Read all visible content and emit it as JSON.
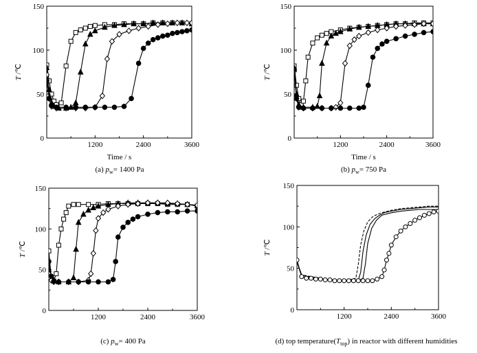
{
  "chart_data": [
    {
      "type": "line",
      "panel": "a",
      "caption": {
        "prefix": "(a) ",
        "sym": "p",
        "sub": "w",
        "rest": "= 1400 Pa"
      },
      "xlabel": "Time / s",
      "ylabel": {
        "sym": "T",
        "rest": " /℃"
      },
      "xlim": [
        0,
        3600
      ],
      "ylim": [
        0,
        150
      ],
      "xticks": [
        1200,
        2400,
        3600
      ],
      "yticks": [
        0,
        50,
        100,
        150
      ],
      "series": [
        {
          "marker": "square-open",
          "x": [
            0,
            60,
            120,
            180,
            240,
            360,
            480,
            600,
            720,
            840,
            960,
            1080,
            1200,
            1440,
            1680,
            1920,
            2160,
            2400,
            2640,
            2880,
            3120,
            3360,
            3600
          ],
          "y": [
            83,
            65,
            50,
            42,
            38,
            40,
            82,
            110,
            120,
            123,
            125,
            127,
            128,
            129,
            129,
            130,
            130,
            130,
            131,
            131,
            131,
            131,
            130
          ]
        },
        {
          "marker": "triangle-filled",
          "x": [
            0,
            60,
            120,
            180,
            300,
            480,
            600,
            720,
            840,
            960,
            1080,
            1200,
            1440,
            1680,
            1920,
            2160,
            2400,
            2640,
            2880,
            3120,
            3360,
            3600
          ],
          "y": [
            80,
            55,
            40,
            36,
            34,
            34,
            35,
            40,
            75,
            107,
            118,
            122,
            126,
            128,
            129,
            130,
            130,
            131,
            131,
            131,
            131,
            130
          ]
        },
        {
          "marker": "diamond-open",
          "x": [
            0,
            60,
            120,
            240,
            480,
            720,
            960,
            1200,
            1380,
            1500,
            1620,
            1800,
            2040,
            2280,
            2520,
            2760,
            3000,
            3240,
            3480,
            3600
          ],
          "y": [
            72,
            45,
            36,
            34,
            34,
            34,
            34,
            35,
            48,
            90,
            110,
            118,
            122,
            125,
            127,
            129,
            130,
            131,
            131,
            131
          ]
        },
        {
          "marker": "circle-filled",
          "x": [
            0,
            60,
            120,
            240,
            480,
            720,
            960,
            1200,
            1440,
            1680,
            1920,
            2100,
            2280,
            2400,
            2520,
            2640,
            2760,
            2880,
            3000,
            3120,
            3240,
            3360,
            3480,
            3600
          ],
          "y": [
            65,
            45,
            37,
            35,
            35,
            35,
            35,
            35,
            35,
            35,
            36,
            45,
            85,
            102,
            108,
            112,
            114,
            116,
            117,
            119,
            120,
            121,
            122,
            123
          ]
        }
      ]
    },
    {
      "type": "line",
      "panel": "b",
      "caption": {
        "prefix": "(b) ",
        "sym": "p",
        "sub": "w",
        "rest": "= 750 Pa"
      },
      "xlabel": "Time / s",
      "ylabel": {
        "sym": "T",
        "rest": " /℃"
      },
      "xlim": [
        0,
        3600
      ],
      "ylim": [
        0,
        150
      ],
      "xticks": [
        1200,
        2400,
        3600
      ],
      "yticks": [
        0,
        50,
        100,
        150
      ],
      "series": [
        {
          "marker": "square-open",
          "x": [
            0,
            60,
            120,
            180,
            240,
            300,
            360,
            480,
            600,
            720,
            840,
            960,
            1200,
            1440,
            1680,
            1920,
            2160,
            2400,
            2640,
            2880,
            3120,
            3360,
            3600
          ],
          "y": [
            82,
            60,
            45,
            38,
            42,
            65,
            92,
            108,
            114,
            117,
            119,
            121,
            123,
            125,
            126,
            127,
            128,
            129,
            130,
            130,
            131,
            131,
            131
          ]
        },
        {
          "marker": "triangle-filled",
          "x": [
            0,
            60,
            120,
            240,
            480,
            600,
            660,
            720,
            840,
            960,
            1080,
            1200,
            1440,
            1680,
            1920,
            2160,
            2400,
            2640,
            2880,
            3120,
            3360,
            3600
          ],
          "y": [
            80,
            50,
            38,
            35,
            35,
            36,
            48,
            85,
            108,
            116,
            119,
            121,
            124,
            126,
            127,
            128,
            129,
            130,
            130,
            130,
            130,
            130
          ]
        },
        {
          "marker": "diamond-open",
          "x": [
            0,
            60,
            120,
            240,
            480,
            720,
            960,
            1080,
            1200,
            1320,
            1440,
            1560,
            1680,
            1920,
            2160,
            2400,
            2640,
            2880,
            3120,
            3360,
            3600
          ],
          "y": [
            76,
            45,
            35,
            34,
            34,
            34,
            34,
            35,
            40,
            85,
            105,
            112,
            116,
            120,
            123,
            125,
            127,
            128,
            129,
            130,
            130
          ]
        },
        {
          "marker": "circle-filled",
          "x": [
            0,
            60,
            120,
            240,
            480,
            720,
            960,
            1200,
            1440,
            1680,
            1800,
            1920,
            2040,
            2160,
            2280,
            2400,
            2640,
            2880,
            3120,
            3360,
            3600
          ],
          "y": [
            78,
            45,
            35,
            34,
            34,
            34,
            34,
            34,
            34,
            34,
            35,
            60,
            92,
            102,
            107,
            110,
            113,
            116,
            118,
            120,
            121
          ]
        }
      ]
    },
    {
      "type": "line",
      "panel": "c",
      "caption": {
        "prefix": "(c) ",
        "sym": "p",
        "sub": "w",
        "rest": "= 400 Pa"
      },
      "xlabel": "",
      "ylabel": {
        "sym": "T",
        "rest": " /℃"
      },
      "xlim": [
        0,
        3600
      ],
      "ylim": [
        0,
        150
      ],
      "xticks": [
        1200,
        2400,
        3600
      ],
      "yticks": [
        0,
        50,
        100,
        150
      ],
      "series": [
        {
          "marker": "square-open",
          "x": [
            0,
            60,
            120,
            180,
            240,
            300,
            360,
            420,
            480,
            600,
            720,
            960,
            1200,
            1440,
            1680,
            1920,
            2160,
            2400,
            2640,
            2880,
            3120,
            3360,
            3600
          ],
          "y": [
            73,
            40,
            36,
            45,
            80,
            100,
            112,
            120,
            128,
            130,
            130,
            130,
            130,
            131,
            131,
            131,
            131,
            131,
            131,
            130,
            130,
            130,
            128
          ]
        },
        {
          "marker": "triangle-filled",
          "x": [
            0,
            120,
            240,
            480,
            600,
            660,
            720,
            840,
            960,
            1080,
            1200,
            1440,
            1680,
            1920,
            2160,
            2400,
            2640,
            2880,
            3120,
            3360,
            3600
          ],
          "y": [
            50,
            37,
            35,
            35,
            40,
            75,
            108,
            118,
            123,
            126,
            128,
            130,
            131,
            132,
            132,
            132,
            132,
            131,
            131,
            130,
            129
          ]
        },
        {
          "marker": "diamond-open",
          "x": [
            0,
            60,
            120,
            240,
            480,
            720,
            960,
            1020,
            1080,
            1140,
            1200,
            1320,
            1440,
            1680,
            1920,
            2160,
            2400,
            2640,
            2880,
            3120,
            3360,
            3600
          ],
          "y": [
            41,
            37,
            35,
            35,
            35,
            35,
            37,
            45,
            70,
            98,
            113,
            120,
            124,
            128,
            130,
            131,
            132,
            132,
            132,
            131,
            130,
            129
          ]
        },
        {
          "marker": "circle-filled",
          "x": [
            0,
            60,
            120,
            240,
            480,
            720,
            960,
            1200,
            1440,
            1560,
            1620,
            1680,
            1800,
            1920,
            2040,
            2160,
            2400,
            2640,
            2880,
            3120,
            3360,
            3600
          ],
          "y": [
            60,
            42,
            36,
            35,
            35,
            35,
            35,
            35,
            35,
            38,
            60,
            90,
            102,
            108,
            112,
            115,
            118,
            120,
            121,
            121,
            122,
            122
          ]
        }
      ]
    },
    {
      "type": "line",
      "panel": "d",
      "caption": {
        "prefix": "(d) top temperature(",
        "sym": "T",
        "sub": "top",
        "rest": ") in reactor with different humidities"
      },
      "xlabel": "",
      "ylabel": {
        "sym": "T",
        "rest": " /℃"
      },
      "xlim": [
        0,
        3600
      ],
      "ylim": [
        0,
        150
      ],
      "xticks": [
        1200,
        2400,
        3600
      ],
      "yticks": [
        0,
        50,
        100,
        150
      ],
      "series": [
        {
          "marker": "none",
          "dash": "dashed",
          "x": [
            0,
            120,
            360,
            720,
            1200,
            1500,
            1560,
            1620,
            1700,
            1800,
            1920,
            2040,
            2160,
            2400,
            2640,
            2880,
            3120,
            3360,
            3600
          ],
          "y": [
            58,
            42,
            40,
            37,
            35,
            38,
            55,
            78,
            95,
            106,
            112,
            115,
            117,
            120,
            122,
            123,
            124,
            125,
            125
          ]
        },
        {
          "marker": "none",
          "dash": "solid-a",
          "x": [
            0,
            120,
            360,
            720,
            1200,
            1560,
            1620,
            1680,
            1760,
            1860,
            1980,
            2100,
            2220,
            2400,
            2640,
            2880,
            3120,
            3360,
            3600
          ],
          "y": [
            58,
            42,
            39,
            37,
            35,
            36,
            45,
            70,
            90,
            103,
            110,
            114,
            117,
            119,
            121,
            122,
            123,
            124,
            124
          ]
        },
        {
          "marker": "none",
          "dash": "solid-b",
          "x": [
            0,
            120,
            360,
            720,
            1200,
            1560,
            1680,
            1740,
            1800,
            1900,
            2020,
            2160,
            2400,
            2640,
            2880,
            3120,
            3360,
            3600
          ],
          "y": [
            58,
            40,
            38,
            36,
            35,
            35,
            38,
            55,
            80,
            98,
            108,
            114,
            117,
            119,
            120,
            121,
            121,
            121
          ]
        },
        {
          "marker": "circle-open",
          "x": [
            0,
            120,
            240,
            360,
            480,
            600,
            720,
            840,
            960,
            1080,
            1200,
            1320,
            1440,
            1560,
            1680,
            1800,
            1920,
            2040,
            2160,
            2220,
            2280,
            2340,
            2400,
            2520,
            2640,
            2760,
            2880,
            3000,
            3120,
            3240,
            3360,
            3480,
            3600
          ],
          "y": [
            60,
            40,
            38,
            38,
            37,
            37,
            36,
            36,
            35,
            35,
            35,
            35,
            35,
            35,
            35,
            35,
            35,
            37,
            40,
            48,
            60,
            68,
            78,
            88,
            95,
            100,
            104,
            108,
            111,
            114,
            116,
            118,
            119
          ]
        }
      ]
    }
  ]
}
